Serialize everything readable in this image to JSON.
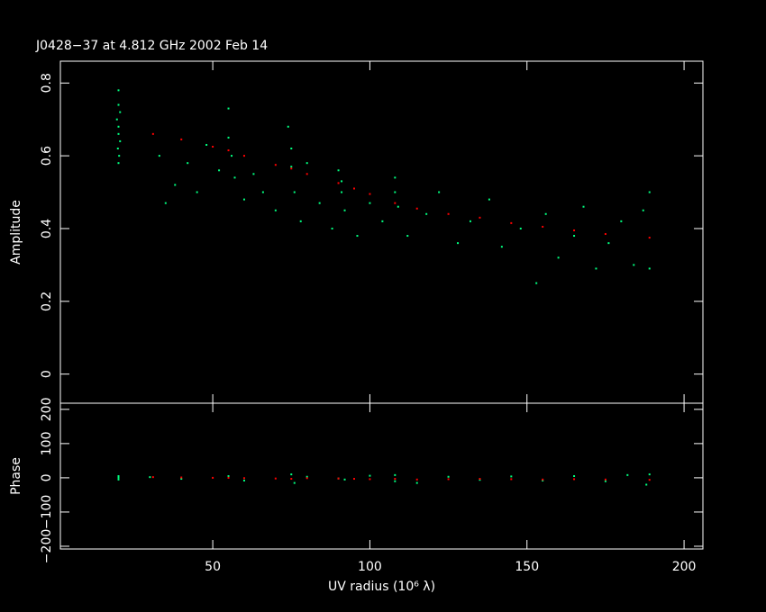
{
  "chart_data": [
    {
      "type": "scatter",
      "title": "J0428−37 at 4.812 GHz 2002 Feb 14",
      "ylabel": "Amplitude",
      "xlim": [
        1.5,
        206
      ],
      "ylim": [
        -0.08,
        0.86
      ],
      "yticks": [
        0,
        0.2,
        0.4,
        0.6,
        0.8
      ],
      "series": [
        {
          "color": "#00ff7f",
          "x": [
            20,
            20,
            20.5,
            19.5,
            20,
            20,
            20.5,
            19.8,
            20.2,
            20,
            33,
            35,
            38,
            42,
            45,
            48,
            52,
            55,
            55,
            56,
            57,
            60,
            63,
            66,
            70,
            74,
            75,
            75,
            76,
            78,
            80,
            84,
            88,
            90,
            91,
            91,
            92,
            96,
            100,
            104,
            108,
            108,
            109,
            112,
            118,
            122,
            128,
            132,
            138,
            142,
            148,
            153,
            156,
            160,
            165,
            168,
            172,
            176,
            180,
            184,
            187,
            189,
            189
          ],
          "values": [
            0.78,
            0.74,
            0.72,
            0.7,
            0.68,
            0.66,
            0.64,
            0.62,
            0.6,
            0.58,
            0.6,
            0.47,
            0.52,
            0.58,
            0.5,
            0.63,
            0.56,
            0.73,
            0.65,
            0.6,
            0.54,
            0.48,
            0.55,
            0.5,
            0.45,
            0.68,
            0.62,
            0.57,
            0.5,
            0.42,
            0.58,
            0.47,
            0.4,
            0.56,
            0.53,
            0.5,
            0.45,
            0.38,
            0.47,
            0.42,
            0.54,
            0.5,
            0.46,
            0.38,
            0.44,
            0.5,
            0.36,
            0.42,
            0.48,
            0.35,
            0.4,
            0.25,
            0.44,
            0.32,
            0.38,
            0.46,
            0.29,
            0.36,
            0.42,
            0.3,
            0.45,
            0.5,
            0.29
          ]
        },
        {
          "color": "#ff0000",
          "x": [
            31,
            40,
            50,
            55,
            60,
            70,
            75,
            80,
            90,
            95,
            100,
            108,
            115,
            125,
            135,
            145,
            155,
            165,
            175,
            189
          ],
          "values": [
            0.66,
            0.645,
            0.625,
            0.615,
            0.6,
            0.575,
            0.565,
            0.55,
            0.525,
            0.51,
            0.495,
            0.47,
            0.455,
            0.44,
            0.43,
            0.415,
            0.405,
            0.395,
            0.385,
            0.375
          ]
        }
      ]
    },
    {
      "type": "scatter",
      "ylabel": "Phase",
      "xlabel": "UV radius  (10⁶ λ)",
      "xlim": [
        1.5,
        206
      ],
      "xticks": [
        50,
        100,
        150,
        200
      ],
      "ylim": [
        -208,
        218
      ],
      "yticks": [
        {
          "value": -200,
          "label": "−200"
        },
        {
          "value": -100,
          "label": "−100"
        },
        0,
        100,
        200
      ],
      "series": [
        {
          "color": "#00ff7f",
          "x": [
            20,
            20,
            20,
            30,
            40,
            55,
            60,
            75,
            76,
            80,
            90,
            92,
            100,
            108,
            108,
            115,
            125,
            135,
            145,
            155,
            165,
            175,
            182,
            188,
            189
          ],
          "values": [
            5,
            -5,
            0,
            2,
            -3,
            5,
            -8,
            10,
            -15,
            3,
            -2,
            -5,
            6,
            8,
            -10,
            -15,
            3,
            -6,
            4,
            -8,
            5,
            -10,
            8,
            -20,
            10
          ]
        },
        {
          "color": "#ff0000",
          "x": [
            31,
            40,
            50,
            55,
            60,
            70,
            75,
            80,
            90,
            95,
            100,
            108,
            115,
            125,
            135,
            145,
            155,
            165,
            175,
            189
          ],
          "values": [
            2,
            1,
            0,
            0,
            -1,
            -2,
            -3,
            -1,
            -2,
            -3,
            -4,
            -3,
            -5,
            -4,
            -3,
            -4,
            -5,
            -4,
            -5,
            -6
          ]
        }
      ]
    }
  ]
}
